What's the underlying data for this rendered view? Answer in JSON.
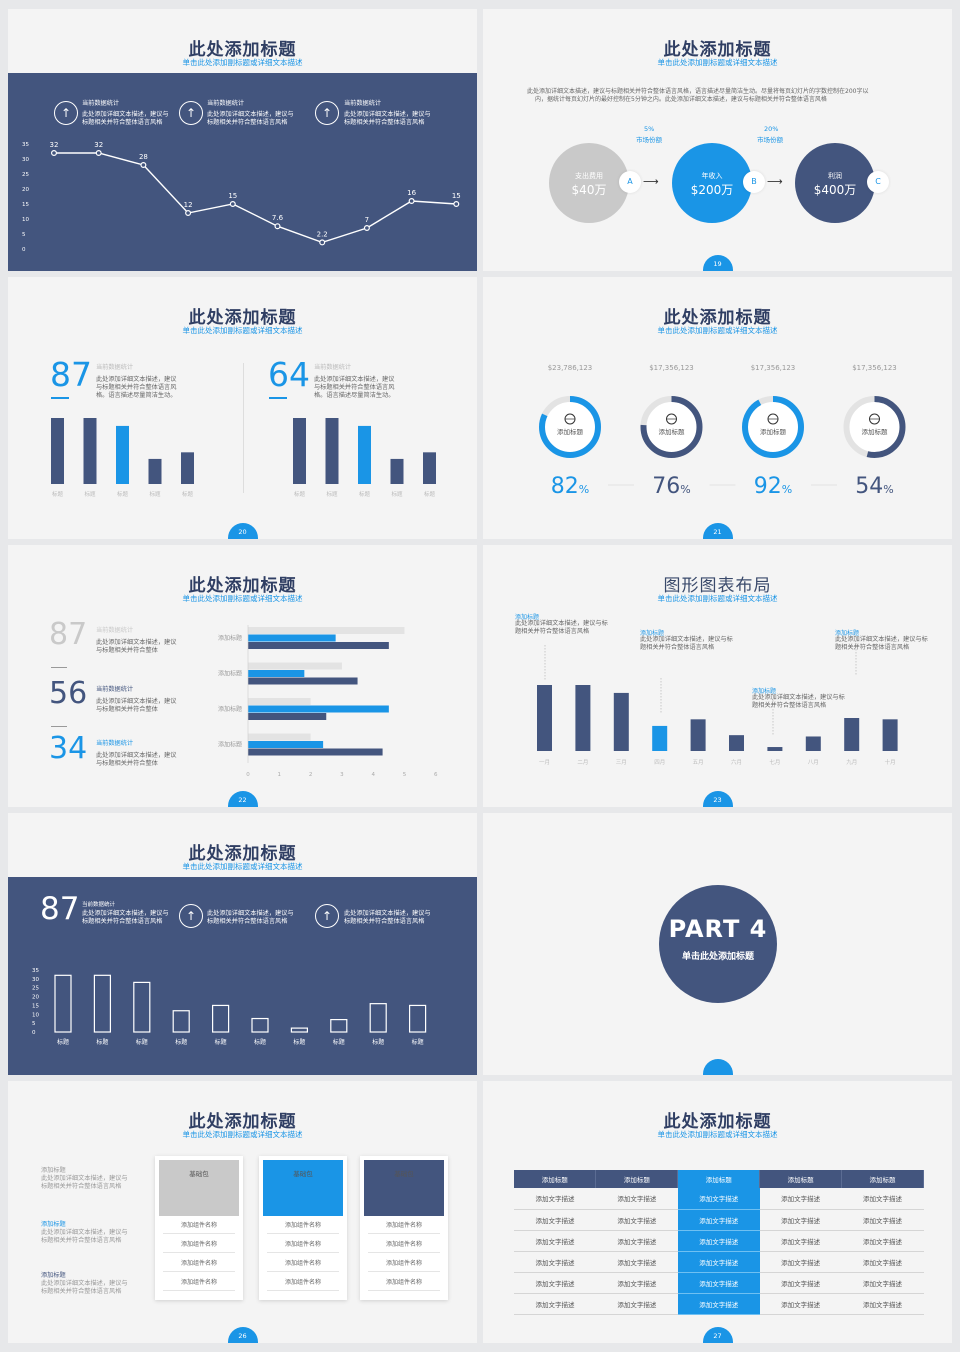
{
  "colors": {
    "navy": "#43557e",
    "blue": "#1a95e6",
    "grey": "#c9c9c9",
    "light": "#e3e3e3"
  },
  "s1": {
    "title": "此处添加标题",
    "subtitle": "单击此处添加副标题或详细文本描述",
    "stats": [
      {
        "icon": "arrow-up-icon",
        "label": "当前数据统计",
        "text1": "此处添加详细文本描述，建议与",
        "text2": "标题相关并符合整体语言风格"
      },
      {
        "icon": "arrow-up-icon",
        "label": "当前数据统计",
        "text1": "此处添加详细文本描述，建议与",
        "text2": "标题相关并符合整体语言风格"
      },
      {
        "icon": "arrow-up-icon",
        "label": "当前数据统计",
        "text1": "此处添加详细文本描述，建议与",
        "text2": "标题相关并符合整体语言风格"
      }
    ],
    "chart_data": {
      "type": "line",
      "yticks": [
        "35",
        "30",
        "25",
        "20",
        "15",
        "10",
        "5",
        "0"
      ],
      "ylim": [
        0,
        35
      ],
      "values": [
        32,
        32,
        28,
        12,
        15,
        7.6,
        2.2,
        7,
        16,
        15
      ],
      "labels": [
        "32",
        "32",
        "28",
        "12",
        "15",
        "7.6",
        "2.2",
        "7",
        "16",
        "15"
      ]
    }
  },
  "s2": {
    "title": "此处添加标题",
    "subtitle": "单击此处添加副标题或详细文本描述",
    "desc1": "此处添加详细文本描述，建议与标题相关并符合整体语言风格，语言描述尽量简洁生动。尽量将每页幻灯片的字数控制在200字以",
    "desc2": "内，据统计每页幻灯片的最好控制在5分钟之内。此处添加详细文本描述，建议与标题相关并符合整体语言风格",
    "circles": [
      {
        "label": "支出费用",
        "value": "$40万",
        "badge": "A"
      },
      {
        "label": "年收入",
        "value": "$200万",
        "badge": "B"
      },
      {
        "label": "利润",
        "value": "$400万",
        "badge": "C"
      }
    ],
    "pct": [
      {
        "value": "5%",
        "label": "市场份额"
      },
      {
        "value": "20%",
        "label": "市场份额"
      }
    ],
    "page": "19"
  },
  "s3": {
    "title": "此处添加标题",
    "subtitle": "单击此处添加副标题或详细文本描述",
    "page": "20",
    "panels": [
      {
        "big": "87",
        "label": "当前数据统计",
        "t1": "此处添加详细文本描述，建议",
        "t2": "与标题相关并符合整体语言风",
        "t3": "格。语言描述尽量简洁生动。",
        "values": [
          100,
          100,
          88,
          38,
          48
        ],
        "cats": [
          "标题",
          "标题",
          "标题",
          "标题",
          "标题"
        ]
      },
      {
        "big": "64",
        "label": "当前数据统计",
        "t1": "此处添加详细文本描述，建议",
        "t2": "与标题相关并符合整体语言风",
        "t3": "格。语言描述尽量简洁生动。",
        "values": [
          100,
          100,
          88,
          38,
          48
        ],
        "cats": [
          "标题",
          "标题",
          "标题",
          "标题",
          "标题"
        ]
      }
    ],
    "chart_data": {
      "type": "bar",
      "series": [
        {
          "values": [
            100,
            100,
            88,
            38,
            48
          ]
        },
        {
          "values": [
            100,
            100,
            88,
            38,
            48
          ]
        }
      ]
    }
  },
  "s4": {
    "title": "此处添加标题",
    "subtitle": "单击此处添加副标题或详细文本描述",
    "page": "21",
    "chart_data": {
      "type": "pie",
      "items": [
        {
          "amount": "$23,786,123",
          "label": "添加标题",
          "pct": 82,
          "num": "82",
          "color": "#1a95e6"
        },
        {
          "amount": "$17,356,123",
          "label": "添加标题",
          "pct": 76,
          "num": "76",
          "color": "#43557e"
        },
        {
          "amount": "$17,356,123",
          "label": "添加标题",
          "pct": 92,
          "num": "92",
          "color": "#1a95e6"
        },
        {
          "amount": "$17,356,123",
          "label": "添加标题",
          "pct": 54,
          "num": "54",
          "color": "#43557e"
        }
      ]
    },
    "unit": "%"
  },
  "s5": {
    "title": "此处添加标题",
    "subtitle": "单击此处添加副标题或详细文本描述",
    "page": "22",
    "stats": [
      {
        "big": "87",
        "label": "当前数据统计",
        "t1": "此处添加详细文本描述，建议",
        "t2": "与标题相关并符合整体"
      },
      {
        "big": "56",
        "label": "当前数据统计",
        "t1": "此处添加详细文本描述，建议",
        "t2": "与标题相关并符合整体"
      },
      {
        "big": "34",
        "label": "当前数据统计",
        "t1": "此处添加详细文本描述，建议",
        "t2": "与标题相关并符合整体"
      }
    ],
    "chart_data": {
      "type": "bar",
      "orientation": "horizontal",
      "categories": [
        "添加标题",
        "添加标题",
        "添加标题",
        "添加标题"
      ],
      "xticks": [
        "0",
        "1",
        "2",
        "3",
        "4",
        "5",
        "6"
      ],
      "xlim": [
        0,
        6
      ],
      "series": [
        {
          "color": "#e3e3e3",
          "values": [
            5,
            3,
            2,
            2
          ]
        },
        {
          "color": "#1a95e6",
          "values": [
            2.8,
            1.8,
            4.5,
            2.4
          ]
        },
        {
          "color": "#43557e",
          "values": [
            4.5,
            3.5,
            2.5,
            4.3
          ]
        }
      ]
    }
  },
  "s6": {
    "title": "图形图表布局",
    "subtitle": "单击此处添加副标题或详细文本描述",
    "page": "23",
    "notes": [
      {
        "label": "添加标题",
        "t1": "此处添加详细文本描述，建议与标",
        "t2": "题相关并符合整体语言风格"
      },
      {
        "label": "添加标题",
        "t1": "此处添加详细文本描述，建议与标",
        "t2": "题相关并符合整体语言风格"
      },
      {
        "label": "添加标题",
        "t1": "此处添加详细文本描述，建议与标",
        "t2": "题相关并符合整体语言风格"
      },
      {
        "label": "添加标题",
        "t1": "此处添加详细文本描述，建议与标",
        "t2": "题相关并符合整体语言风格"
      }
    ],
    "chart_data": {
      "type": "bar",
      "categories": [
        "一月",
        "二月",
        "三月",
        "四月",
        "五月",
        "六月",
        "七月",
        "八月",
        "九月",
        "十月"
      ],
      "values": [
        100,
        100,
        88,
        38,
        48,
        24,
        6,
        22,
        50,
        48
      ]
    }
  },
  "s7": {
    "title": "此处添加标题",
    "subtitle": "单击此处添加副标题或详细文本描述",
    "big": "87",
    "stats": [
      {
        "label": "当前数据统计",
        "t1": "此处添加详细文本描述，建议与",
        "t2": "标题相关并符合整体语言风格"
      },
      {
        "icon": "arrow-up-icon",
        "label": "",
        "t1": "此处添加详细文本描述，建议与",
        "t2": "标题相关并符合整体语言风格"
      },
      {
        "icon": "arrow-up-icon",
        "label": "",
        "t1": "此处添加详细文本描述，建议与",
        "t2": "标题相关并符合整体语言风格"
      }
    ],
    "chart_data": {
      "type": "bar",
      "yticks": [
        "35",
        "30",
        "25",
        "20",
        "15",
        "10",
        "5",
        "0"
      ],
      "ylim": [
        0,
        35
      ],
      "categories": [
        "标题",
        "标题",
        "标题",
        "标题",
        "标题",
        "标题",
        "标题",
        "标题",
        "标题",
        "标题"
      ],
      "values": [
        32,
        32,
        28,
        12,
        15,
        7.6,
        2.2,
        7,
        16,
        15
      ]
    }
  },
  "s8": {
    "part": "PART 4",
    "caption": "单击此处添加标题"
  },
  "s9": {
    "title": "此处添加标题",
    "subtitle": "单击此处添加副标题或详细文本描述",
    "page": "26",
    "notes": [
      {
        "label": "添加标题",
        "t1": "此处添加详细文本描述，建议与",
        "t2": "标题相关并符合整体语言风格"
      },
      {
        "label": "添加标题",
        "t1": "此处添加详细文本描述，建议与",
        "t2": "标题相关并符合整体语言风格"
      },
      {
        "label": "添加标题",
        "t1": "此处添加详细文本描述，建议与",
        "t2": "标题相关并符合整体语言风格"
      }
    ],
    "cards": [
      {
        "head": "基础包",
        "rows": [
          "添加组件名称",
          "添加组件名称",
          "添加组件名称",
          "添加组件名称"
        ]
      },
      {
        "head": "基础包",
        "rows": [
          "添加组件名称",
          "添加组件名称",
          "添加组件名称",
          "添加组件名称"
        ]
      },
      {
        "head": "基础包",
        "rows": [
          "添加组件名称",
          "添加组件名称",
          "添加组件名称",
          "添加组件名称"
        ]
      }
    ]
  },
  "s10": {
    "title": "此处添加标题",
    "subtitle": "单击此处添加副标题或详细文本描述",
    "page": "27",
    "headers": [
      "添加标题",
      "添加标题",
      "添加标题",
      "添加标题",
      "添加标题"
    ],
    "rows": [
      [
        "添加文字描述",
        "添加文字描述",
        "添加文字描述",
        "添加文字描述",
        "添加文字描述"
      ],
      [
        "添加文字描述",
        "添加文字描述",
        "添加文字描述",
        "添加文字描述",
        "添加文字描述"
      ],
      [
        "添加文字描述",
        "添加文字描述",
        "添加文字描述",
        "添加文字描述",
        "添加文字描述"
      ],
      [
        "添加文字描述",
        "添加文字描述",
        "添加文字描述",
        "添加文字描述",
        "添加文字描述"
      ],
      [
        "添加文字描述",
        "添加文字描述",
        "添加文字描述",
        "添加文字描述",
        "添加文字描述"
      ],
      [
        "添加文字描述",
        "添加文字描述",
        "添加文字描述",
        "添加文字描述",
        "添加文字描述"
      ]
    ]
  }
}
